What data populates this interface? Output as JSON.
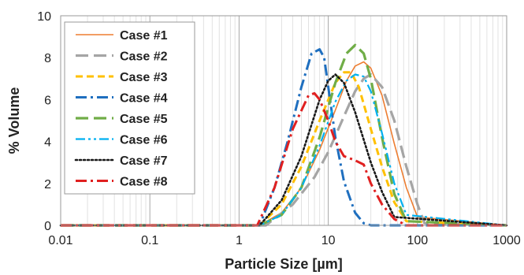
{
  "chart_data": {
    "type": "line",
    "title": "",
    "xlabel": "Particle Size [µm]",
    "ylabel": "% Volume",
    "x_scale": "log",
    "xlim": [
      0.01,
      1000
    ],
    "ylim": [
      0,
      10
    ],
    "x_ticks": [
      "0.01",
      "0.1",
      "1",
      "10",
      "100",
      "1000"
    ],
    "y_ticks": [
      "0",
      "2",
      "4",
      "6",
      "8",
      "10"
    ],
    "grid": "major and minor vertical (log), none horizontal",
    "legend_position": "top-left",
    "series": [
      {
        "name": "Case #1",
        "color": "#ed7d31",
        "dash": "solid",
        "x": [
          0.01,
          1.7,
          3,
          5,
          8,
          12,
          16,
          20,
          25,
          30,
          40,
          55,
          75,
          100,
          1000
        ],
        "y": [
          0,
          0,
          0.6,
          1.8,
          3.6,
          5.5,
          6.9,
          7.6,
          7.8,
          7.5,
          6.2,
          3.9,
          1.8,
          0.4,
          0
        ]
      },
      {
        "name": "Case #2",
        "color": "#a5a5a5",
        "dash": "long-dash",
        "x": [
          0.01,
          2,
          4,
          7,
          10,
          15,
          20,
          25,
          30,
          40,
          55,
          75,
          100,
          120,
          1000
        ],
        "y": [
          0,
          0,
          1.0,
          2.3,
          3.5,
          5.2,
          6.4,
          7.0,
          7.2,
          6.6,
          5.0,
          2.8,
          1.0,
          0.1,
          0
        ]
      },
      {
        "name": "Case #3",
        "color": "#ffc000",
        "dash": "dash",
        "x": [
          0.01,
          1.7,
          3,
          5,
          8,
          12,
          15,
          18,
          22,
          30,
          40,
          55,
          75,
          1000
        ],
        "y": [
          0,
          0,
          1.0,
          2.8,
          5.0,
          6.8,
          7.3,
          7.3,
          6.6,
          4.6,
          2.8,
          1.1,
          0.2,
          0
        ]
      },
      {
        "name": "Case #4",
        "color": "#1f6fbf",
        "dash": "dash-dot",
        "x": [
          0.01,
          1.7,
          2.5,
          3.5,
          5,
          6.5,
          8,
          9,
          10,
          12,
          15,
          20,
          25,
          30,
          1000
        ],
        "y": [
          0,
          0,
          1.8,
          4.0,
          6.6,
          8.2,
          8.4,
          8.0,
          6.6,
          4.2,
          2.1,
          0.6,
          0.1,
          0,
          0
        ]
      },
      {
        "name": "Case #5",
        "color": "#70ad47",
        "dash": "long-dash",
        "x": [
          0.01,
          1.7,
          3,
          5,
          8,
          12,
          16,
          20,
          25,
          30,
          40,
          55,
          75,
          1000
        ],
        "y": [
          0,
          0,
          0.5,
          1.8,
          4.2,
          6.8,
          8.2,
          8.6,
          8.2,
          7.0,
          4.2,
          1.5,
          0.2,
          0
        ]
      },
      {
        "name": "Case #6",
        "color": "#00b0f0",
        "dash": "dash-dot-dot",
        "x": [
          0.01,
          1.7,
          3,
          5,
          8,
          12,
          16,
          20,
          25,
          30,
          40,
          55,
          75,
          1000
        ],
        "y": [
          0,
          0,
          0.5,
          1.8,
          3.8,
          5.9,
          6.9,
          7.2,
          7.1,
          6.4,
          4.4,
          2.0,
          0.5,
          0
        ]
      },
      {
        "name": "Case #7",
        "color": "#1a1a1a",
        "dash": "dot",
        "x": [
          0.01,
          1.7,
          3,
          5,
          8,
          10,
          12,
          15,
          20,
          30,
          40,
          55,
          1000
        ],
        "y": [
          0,
          0,
          1.2,
          3.3,
          6.0,
          6.9,
          7.2,
          6.8,
          5.4,
          3.0,
          1.6,
          0.4,
          0
        ]
      },
      {
        "name": "Case #8",
        "color": "#e02020",
        "dash": "dash-dot",
        "x": [
          0.01,
          1.6,
          2.5,
          4,
          6,
          7,
          8,
          10,
          12,
          15,
          20,
          25,
          30,
          40,
          55,
          75,
          1000
        ],
        "y": [
          0,
          0,
          1.8,
          4.6,
          6.2,
          6.3,
          6.0,
          5.0,
          4.0,
          3.3,
          3.1,
          2.9,
          2.0,
          1.0,
          0.3,
          0,
          0
        ]
      }
    ]
  }
}
